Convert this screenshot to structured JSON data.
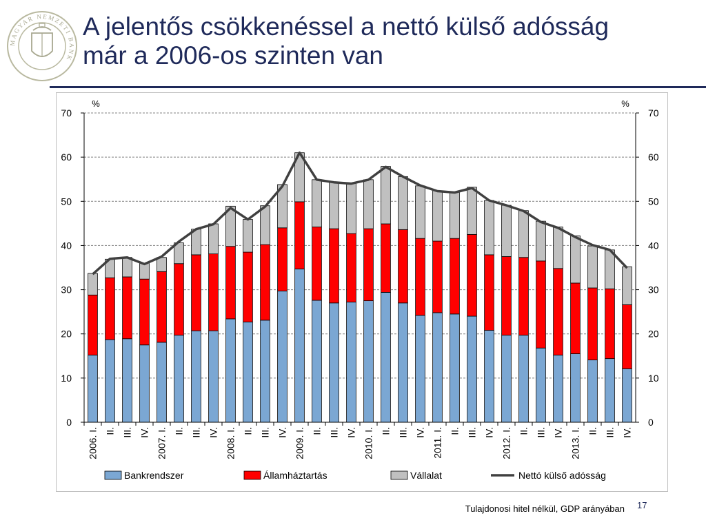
{
  "slide": {
    "title_line1": "A jelentős csökkenéssel a nettó külső adósság",
    "title_line2": "már a 2006-os szinten van",
    "footnote": "Tulajdonosi hitel nélkül, GDP arányában",
    "page_number": "17",
    "logo_text": "MAGYAR NEMZETI BANK"
  },
  "colors": {
    "title": "#1f2a5a",
    "bankrendszer": "#7ba7d3",
    "allamhaztartas": "#ff0000",
    "vallalat": "#c0c0c0",
    "netto": "#404040"
  },
  "chart_data": {
    "type": "bar",
    "stacked": true,
    "left_unit": "%",
    "right_unit": "%",
    "ylim": [
      0,
      70
    ],
    "yticks": [
      0,
      10,
      20,
      30,
      40,
      50,
      60,
      70
    ],
    "grid": true,
    "legend_position": "bottom",
    "categories": [
      "2006. I.",
      "II.",
      "III.",
      "IV.",
      "2007. I.",
      "II.",
      "III.",
      "IV.",
      "2008. I.",
      "II.",
      "III.",
      "IV.",
      "2009. I.",
      "II.",
      "III.",
      "IV.",
      "2010. I.",
      "II.",
      "III.",
      "IV.",
      "2011. I.",
      "II.",
      "III.",
      "IV.",
      "2012. I.",
      "II.",
      "III.",
      "IV.",
      "2013. I.",
      "II.",
      "III.",
      "IV."
    ],
    "series": [
      {
        "name": "Bankrendszer",
        "kind": "bar",
        "values": [
          15.2,
          18.7,
          18.9,
          17.5,
          18.1,
          19.7,
          20.7,
          20.7,
          23.4,
          22.7,
          23.1,
          29.7,
          34.7,
          27.6,
          27.0,
          27.2,
          27.5,
          29.4,
          27.0,
          24.2,
          24.8,
          24.5,
          24.0,
          20.8,
          19.7,
          19.7,
          16.8,
          15.2,
          15.5,
          14.1,
          14.4,
          12.1
        ]
      },
      {
        "name": "Államháztartás",
        "kind": "bar",
        "values": [
          13.6,
          14.0,
          14.0,
          14.9,
          16.0,
          16.2,
          17.2,
          17.4,
          16.4,
          15.8,
          17.1,
          14.3,
          15.2,
          16.6,
          16.8,
          15.5,
          16.3,
          15.5,
          16.6,
          17.4,
          16.2,
          17.1,
          18.5,
          17.1,
          17.8,
          17.6,
          19.7,
          19.6,
          16.0,
          16.3,
          15.8,
          14.5
        ]
      },
      {
        "name": "Vállalat",
        "kind": "bar",
        "values": [
          4.9,
          4.2,
          4.4,
          3.6,
          3.2,
          4.7,
          5.8,
          6.8,
          9.1,
          7.4,
          8.8,
          9.8,
          11.1,
          10.7,
          10.5,
          11.4,
          11.1,
          13.0,
          12.0,
          11.9,
          11.4,
          10.5,
          10.7,
          12.3,
          11.6,
          10.6,
          9.0,
          9.4,
          10.7,
          9.5,
          8.8,
          8.6
        ]
      },
      {
        "name": "Nettó külső adósság",
        "kind": "line",
        "values": [
          33.5,
          37.0,
          37.3,
          35.8,
          37.5,
          40.9,
          43.7,
          44.8,
          48.5,
          45.9,
          48.8,
          53.4,
          61.0,
          54.9,
          54.3,
          54.0,
          54.9,
          57.8,
          55.6,
          53.6,
          52.3,
          52.0,
          53.0,
          50.2,
          49.1,
          47.8,
          45.3,
          44.0,
          41.9,
          40.1,
          39.0,
          34.9
        ]
      }
    ]
  }
}
